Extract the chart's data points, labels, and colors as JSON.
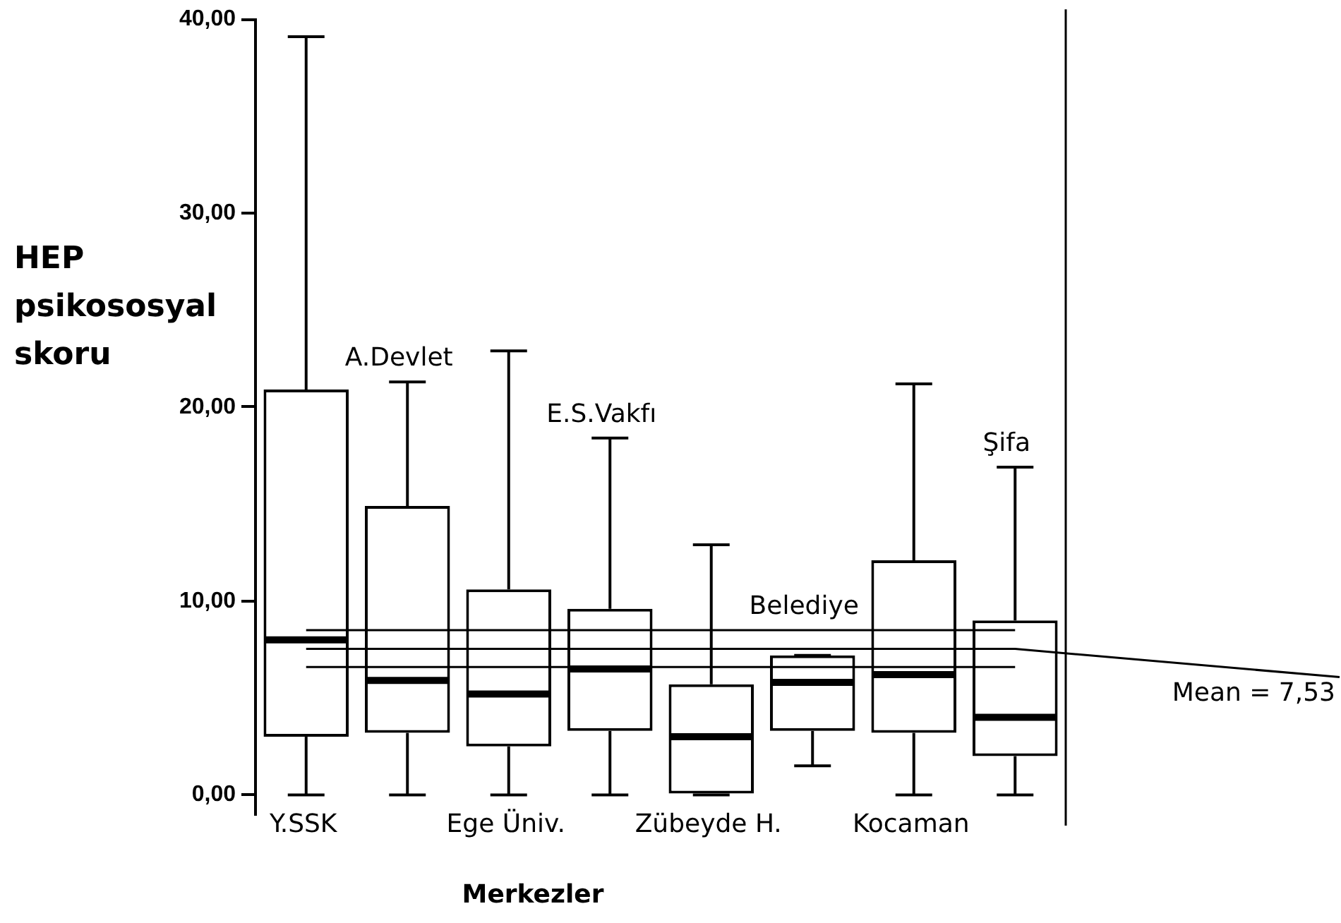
{
  "chart_data": {
    "type": "box",
    "xlabel": "Merkezler",
    "ylabel": "HEP psikososyal skoru",
    "categories": [
      "Y.SSK",
      "A.Devlet",
      "Ege Üniv.",
      "E.S.Vakfı",
      "Zübeyde H.",
      "Belediye",
      "Kocaman",
      "Şifa"
    ],
    "color": "#000000",
    "boxes": [
      {
        "low": 0,
        "q1": 3.0,
        "median": 8.0,
        "q3": 20.9,
        "high": 39.1
      },
      {
        "low": 0,
        "q1": 3.2,
        "median": 5.9,
        "q3": 14.9,
        "high": 21.3
      },
      {
        "low": 0,
        "q1": 2.5,
        "median": 5.2,
        "q3": 10.6,
        "high": 22.9
      },
      {
        "low": 0,
        "q1": 3.3,
        "median": 6.5,
        "q3": 9.6,
        "high": 18.4
      },
      {
        "low": 0,
        "q1": 0,
        "median": 3.0,
        "q3": 5.7,
        "high": 12.9
      },
      {
        "low": 1.5,
        "q1": 3.3,
        "median": 5.8,
        "q3": 7.2,
        "high": 7.2
      },
      {
        "low": 0,
        "q1": 3.2,
        "median": 6.2,
        "q3": 12.1,
        "high": 21.2
      },
      {
        "low": 0,
        "q1": 2.0,
        "median": 4.0,
        "q3": 9.0,
        "high": 16.9
      }
    ],
    "ylim": [
      -1,
      40
    ],
    "yticks": [
      {
        "value": 0,
        "label": "0,00"
      },
      {
        "value": 10,
        "label": "10,00"
      },
      {
        "value": 20,
        "label": "20,00"
      },
      {
        "value": 30,
        "label": "30,00"
      },
      {
        "value": 40,
        "label": "40,00"
      }
    ],
    "ref_lines": [
      {
        "axis": "y",
        "value": 8.5
      },
      {
        "axis": "y",
        "value": 7.53,
        "label": "Mean = 7,53"
      },
      {
        "axis": "y",
        "value": 6.6
      }
    ]
  }
}
